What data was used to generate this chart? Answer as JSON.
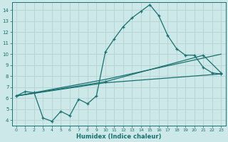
{
  "xlabel": "Humidex (Indice chaleur)",
  "bg_color": "#cce8e8",
  "grid_color": "#b8d4d4",
  "line_color": "#1a7070",
  "xlim": [
    -0.5,
    23.5
  ],
  "ylim": [
    3.5,
    14.7
  ],
  "xticks": [
    0,
    1,
    2,
    3,
    4,
    5,
    6,
    7,
    8,
    9,
    10,
    11,
    12,
    13,
    14,
    15,
    16,
    17,
    18,
    19,
    20,
    21,
    22,
    23
  ],
  "yticks": [
    4,
    5,
    6,
    7,
    8,
    9,
    10,
    11,
    12,
    13,
    14
  ],
  "line1_x": [
    0,
    1,
    2,
    3,
    4,
    5,
    6,
    7,
    8,
    9,
    10,
    11,
    12,
    13,
    14,
    15,
    16,
    17,
    18,
    19,
    20,
    21,
    22,
    23
  ],
  "line1_y": [
    6.2,
    6.6,
    6.5,
    4.2,
    3.9,
    4.8,
    4.4,
    5.9,
    5.5,
    6.2,
    10.2,
    11.4,
    12.5,
    13.3,
    13.9,
    14.5,
    13.5,
    11.7,
    10.5,
    9.9,
    9.9,
    8.8,
    8.3,
    8.2
  ],
  "line2_x": [
    0,
    10,
    21,
    23
  ],
  "line2_y": [
    6.2,
    7.5,
    9.9,
    8.3
  ],
  "line3_x": [
    0,
    10,
    23
  ],
  "line3_y": [
    6.2,
    7.4,
    8.2
  ],
  "line4_x": [
    0,
    10,
    23
  ],
  "line4_y": [
    6.2,
    7.7,
    10.0
  ]
}
